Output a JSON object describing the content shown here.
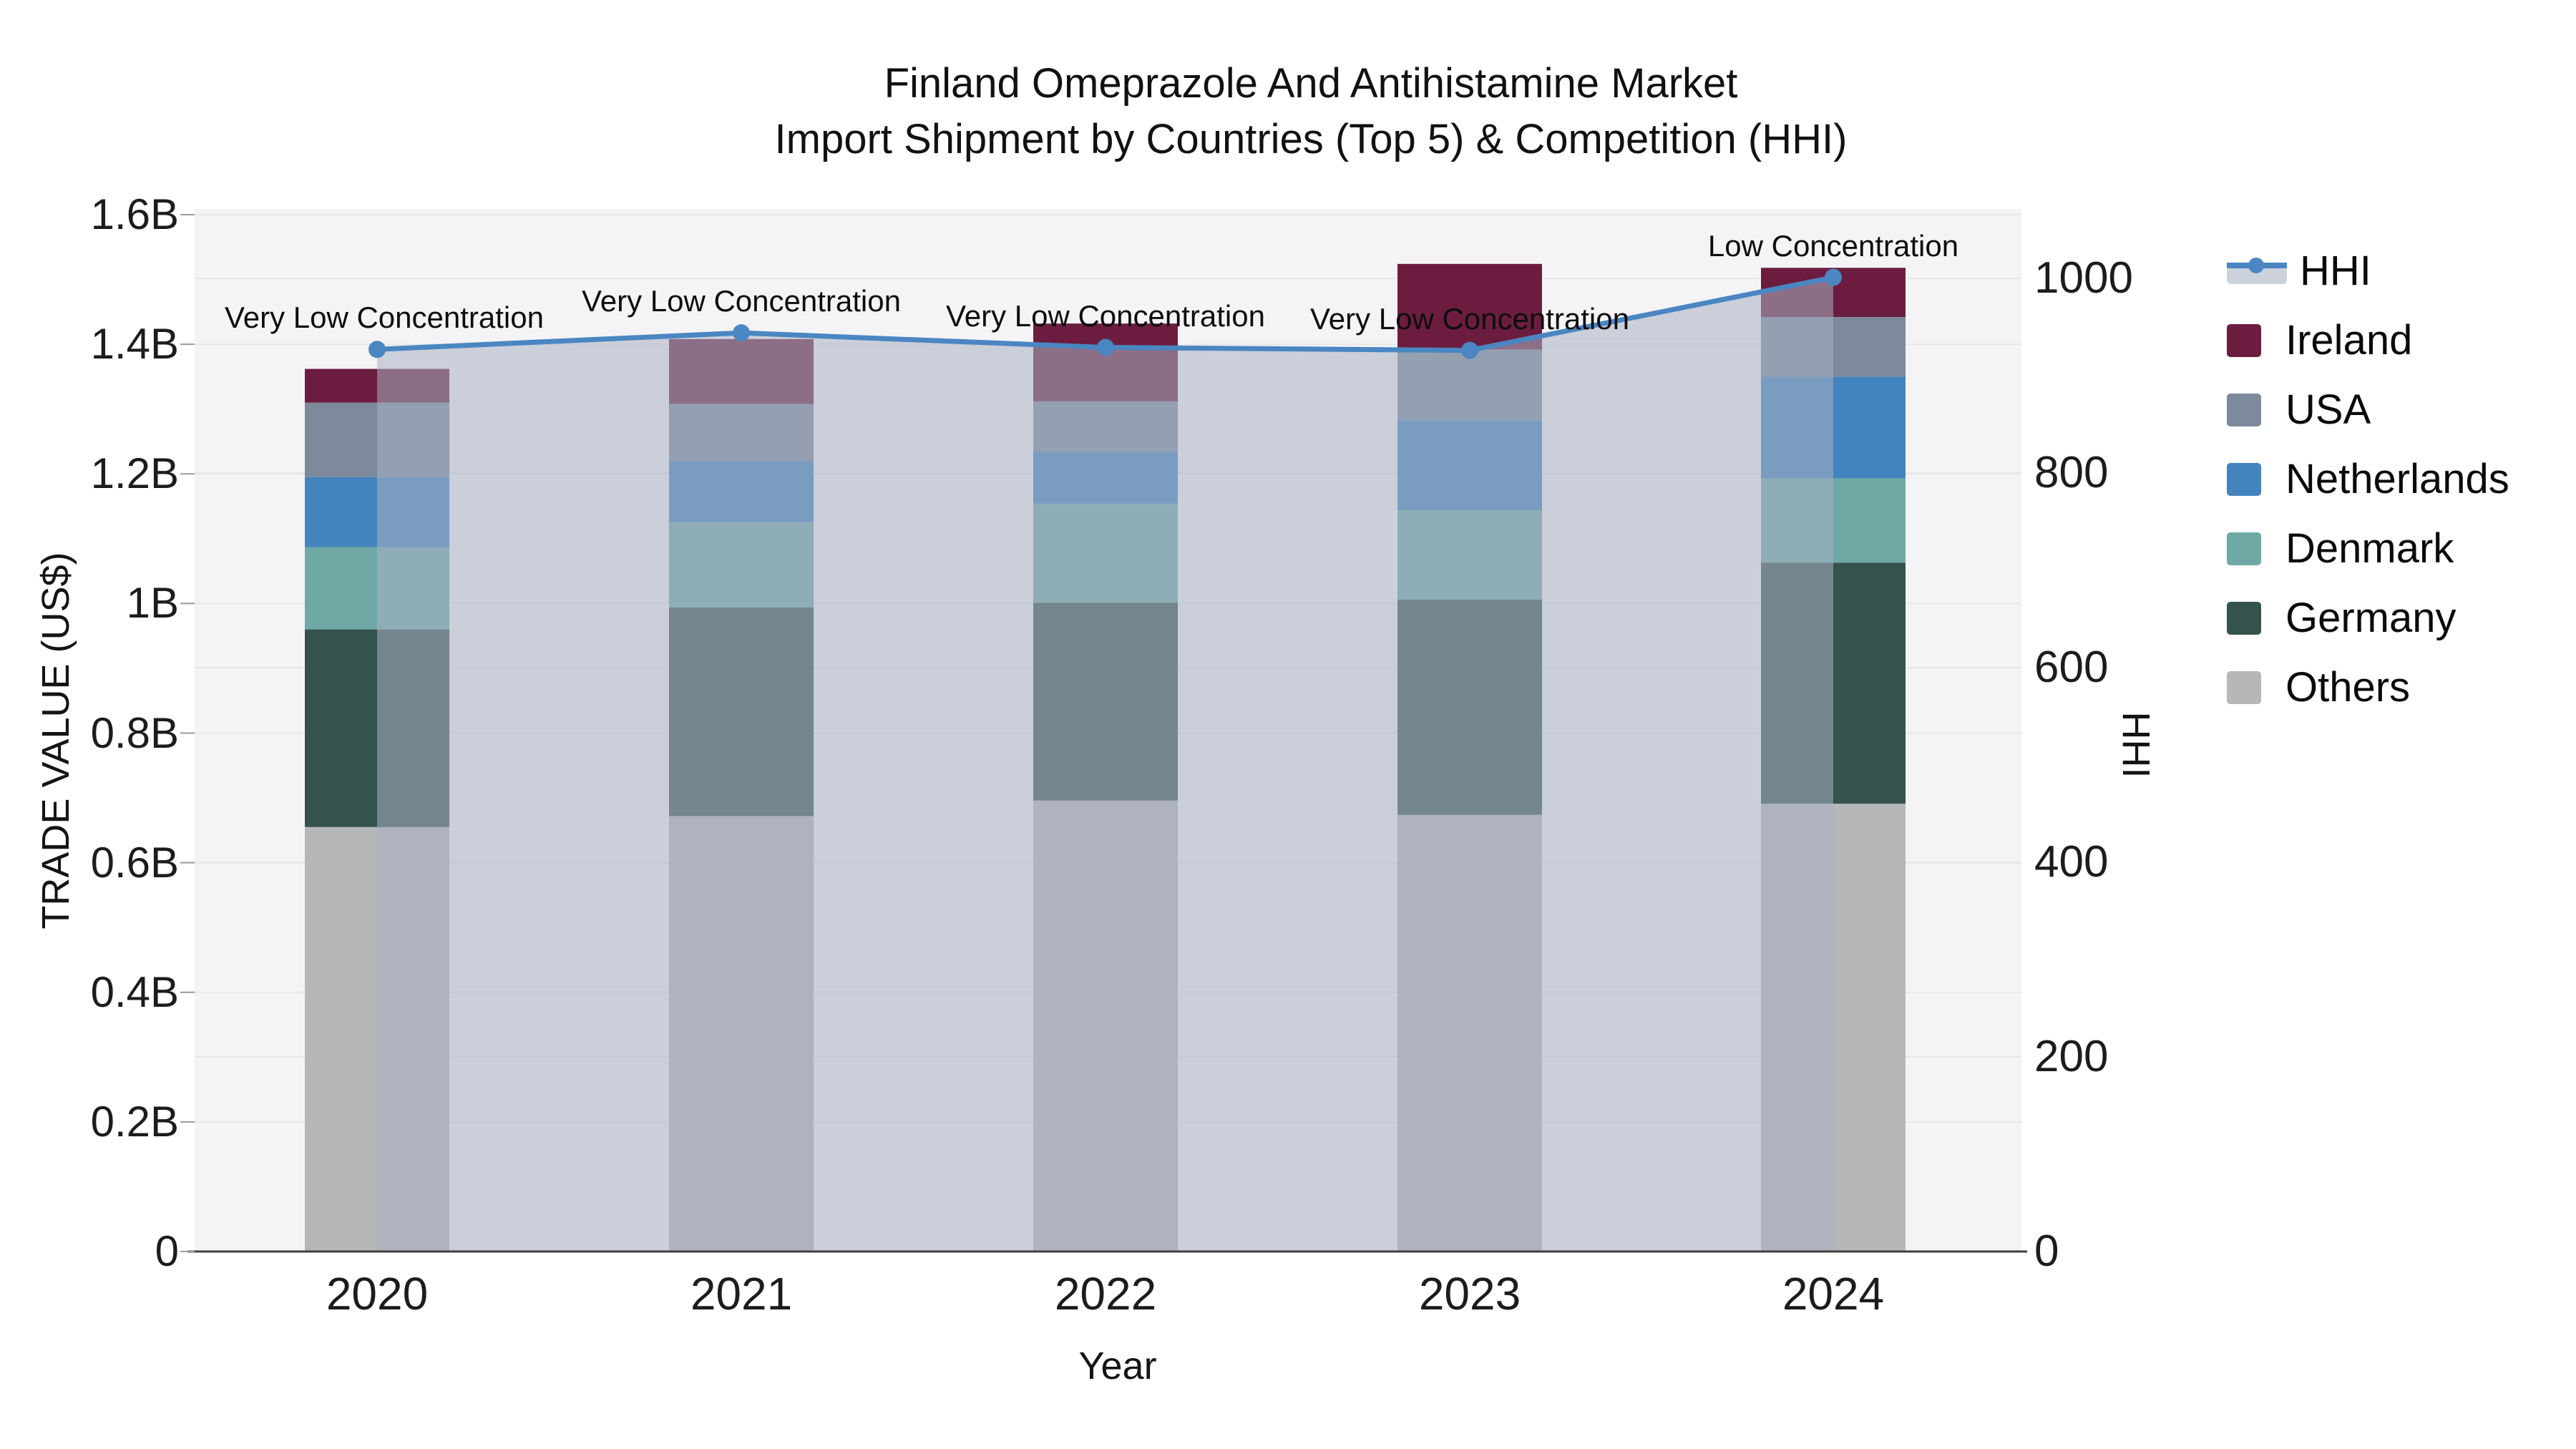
{
  "title": {
    "line1": "Finland Omeprazole And Antihistamine Market",
    "line2": "Import Shipment by Countries (Top 5) & Competition (HHI)"
  },
  "axes": {
    "y_left": {
      "title": "TRADE VALUE (US$)",
      "tick_labels": [
        "0",
        "0.2B",
        "0.4B",
        "0.6B",
        "0.8B",
        "1B",
        "1.2B",
        "1.4B",
        "1.6B"
      ],
      "tick_values": [
        0,
        0.2,
        0.4,
        0.6,
        0.8,
        1.0,
        1.2,
        1.4,
        1.6
      ]
    },
    "y_right": {
      "title": "HHI",
      "tick_labels": [
        "0",
        "200",
        "400",
        "600",
        "800",
        "1000"
      ],
      "tick_values": [
        0,
        200,
        400,
        600,
        800,
        1000
      ]
    },
    "x": {
      "title": "Year"
    }
  },
  "legend": {
    "items": [
      {
        "label": "HHI",
        "type": "line",
        "color": "#4a86c2"
      },
      {
        "label": "Ireland",
        "type": "square",
        "color": "#6c1d3f"
      },
      {
        "label": "USA",
        "type": "square",
        "color": "#7c8a9b"
      },
      {
        "label": "Netherlands",
        "type": "square",
        "color": "#4484be"
      },
      {
        "label": "Denmark",
        "type": "square",
        "color": "#6fa9a6"
      },
      {
        "label": "Germany",
        "type": "square",
        "color": "#35534e"
      },
      {
        "label": "Others",
        "type": "square",
        "color": "#b5b7b9"
      }
    ]
  },
  "chart_data": {
    "type": "bar",
    "subtype": "stacked-bars-with-line",
    "categories": [
      "2020",
      "2021",
      "2022",
      "2023",
      "2024"
    ],
    "value_unit": "billion US$",
    "series": [
      {
        "name": "Others",
        "color": "#b5b7b9",
        "values": [
          0.655,
          0.672,
          0.696,
          0.674,
          0.691
        ]
      },
      {
        "name": "Germany",
        "color": "#35534e",
        "values": [
          0.305,
          0.322,
          0.305,
          0.332,
          0.372
        ]
      },
      {
        "name": "Denmark",
        "color": "#6fa9a6",
        "values": [
          0.127,
          0.131,
          0.153,
          0.138,
          0.13
        ]
      },
      {
        "name": "Netherlands",
        "color": "#4484be",
        "values": [
          0.108,
          0.095,
          0.08,
          0.139,
          0.157
        ]
      },
      {
        "name": "USA",
        "color": "#7c8a9b",
        "values": [
          0.115,
          0.088,
          0.078,
          0.109,
          0.092
        ]
      },
      {
        "name": "Ireland",
        "color": "#6c1d3f",
        "values": [
          0.052,
          0.1,
          0.12,
          0.132,
          0.076
        ]
      }
    ],
    "totals": [
      1.362,
      1.408,
      1.432,
      1.524,
      1.518
    ],
    "hhi_line": {
      "name": "HHI",
      "color": "#4a86c2",
      "area_color": "rgba(167,177,194,0.55)",
      "values": [
        927,
        944,
        929,
        926,
        1001
      ],
      "annotations": [
        "Very Low Concentration",
        "Very Low Concentration",
        "Very Low Concentration",
        "Very Low Concentration",
        "Low Concentration"
      ]
    },
    "ylabel_left": "TRADE VALUE (US$)",
    "ylabel_right": "HHI",
    "xlabel": "Year",
    "ylim_left": [
      0,
      1.6
    ],
    "ylim_right": [
      0,
      1065
    ],
    "grid": true,
    "legend_position": "right"
  }
}
